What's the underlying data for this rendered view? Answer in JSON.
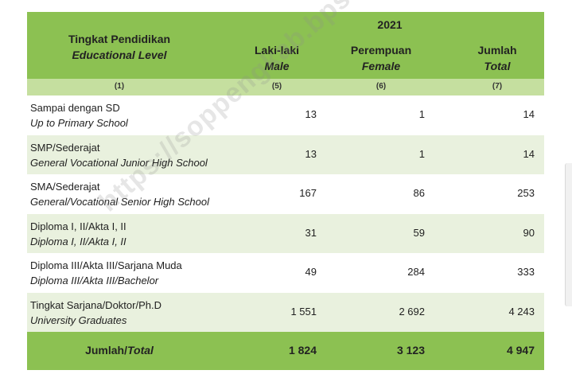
{
  "header": {
    "level_id": "Tingkat Pendidikan",
    "level_en": "Educational Level",
    "year": "2021",
    "male_id": "Laki-laki",
    "male_en": "Male",
    "female_id": "Perempuan",
    "female_en": "Female",
    "total_id": "Jumlah",
    "total_en": "Total"
  },
  "column_numbers": {
    "c1": "(1)",
    "c5": "(5)",
    "c6": "(6)",
    "c7": "(7)"
  },
  "rows": [
    {
      "label_id": "Sampai dengan SD",
      "label_en": "Up to Primary School",
      "male": "13",
      "female": "1",
      "total": "14"
    },
    {
      "label_id": "SMP/Sederajat",
      "label_en": "General Vocational Junior High School",
      "male": "13",
      "female": "1",
      "total": "14"
    },
    {
      "label_id": "SMA/Sederajat",
      "label_en": "General/Vocational Senior High School",
      "male": "167",
      "female": "86",
      "total": "253"
    },
    {
      "label_id": "Diploma I, II/Akta I, II",
      "label_en": "Diploma I, II/Akta I, II",
      "male": "31",
      "female": "59",
      "total": "90"
    },
    {
      "label_id": "Diploma III/Akta III/Sarjana Muda",
      "label_en": "Diploma III/Akta III/Bachelor",
      "male": "49",
      "female": "284",
      "total": "333"
    },
    {
      "label_id": "Tingkat Sarjana/Doktor/Ph.D",
      "label_en": "University Graduates",
      "male": "1 551",
      "female": "2 692",
      "total": "4 243"
    }
  ],
  "footer": {
    "label_id": "Jumlah/",
    "label_en": "Total",
    "male": "1 824",
    "female": "3 123",
    "total": "4 947"
  },
  "watermark": "https://soppengkab.bps.go.id"
}
